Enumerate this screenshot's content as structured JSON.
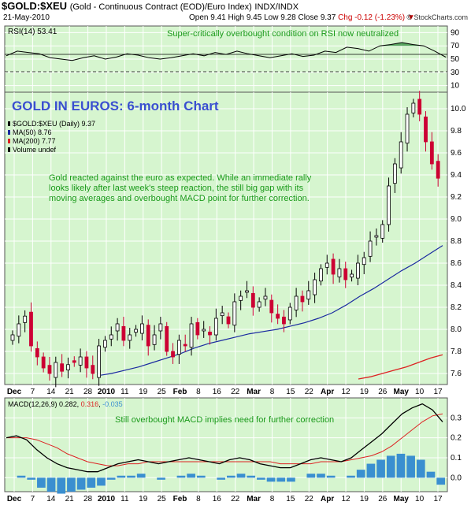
{
  "header": {
    "symbol": "$GOLD:$XEU",
    "description": "(Gold - Continuous Contract (EOD)/Euro Index)",
    "exchange": "INDX/INDX",
    "date": "21-May-2010",
    "open": "Open 9.41",
    "high": "High 9.45",
    "low": "Low 9.28",
    "close": "Close 9.37",
    "change": "Chg -0.12 (-1.23%)",
    "arrow": "▼",
    "brand": "© StockCharts.com"
  },
  "colors": {
    "panel_bg": "#d6f5cf",
    "up_candle": "#000000",
    "down_candle": "#cc0033",
    "ma50": "#1a2aa0",
    "ma200": "#dd2222",
    "macd": "#000000",
    "signal": "#dd2222",
    "histogram": "#3a8fd0",
    "annotation": "#1a9a1a",
    "title": "#3a4fd0"
  },
  "rsi_panel": {
    "label": "RSI(14) 53.41",
    "annotation": "Super-critically overbought condition on RSI now neutralized",
    "ticks": [
      "90",
      "70",
      "50",
      "30",
      "10"
    ]
  },
  "main_panel": {
    "title": "GOLD IN EUROS: 6-month Chart",
    "legend": [
      "$GOLD:$XEU (Daily) 9.37",
      "MA(50) 8.76",
      "MA(200) 7.77",
      "Volume undef"
    ],
    "annotation_lines": [
      "Gold reacted against the euro as expected. While an immediate rally",
      "looks likely after last week's steep reaction, the still big gap with its",
      "moving averages and overbought MACD point for further correction."
    ],
    "y_ticks": [
      "10.0",
      "9.8",
      "9.6",
      "9.4",
      "9.2",
      "9.0",
      "8.8",
      "8.6",
      "8.4",
      "8.2",
      "8.0",
      "7.8",
      "7.6"
    ]
  },
  "macd_panel": {
    "label_prefix": "MACD(12,26,9)",
    "macd_value": "0.282",
    "signal_value": "0.316",
    "hist_value": "-0.035",
    "annotation": "Still overbought MACD implies need for further correction",
    "ticks": [
      "0.3",
      "0.2",
      "0.1",
      "0.0"
    ]
  },
  "x_axis": {
    "labels": [
      {
        "t": "Dec",
        "b": true
      },
      {
        "t": "7",
        "b": false
      },
      {
        "t": "14",
        "b": false
      },
      {
        "t": "21",
        "b": false
      },
      {
        "t": "28",
        "b": false
      },
      {
        "t": "2010",
        "b": true
      },
      {
        "t": "11",
        "b": false
      },
      {
        "t": "19",
        "b": false
      },
      {
        "t": "25",
        "b": false
      },
      {
        "t": "Feb",
        "b": true
      },
      {
        "t": "8",
        "b": false
      },
      {
        "t": "16",
        "b": false
      },
      {
        "t": "22",
        "b": false
      },
      {
        "t": "Mar",
        "b": true
      },
      {
        "t": "8",
        "b": false
      },
      {
        "t": "15",
        "b": false
      },
      {
        "t": "22",
        "b": false
      },
      {
        "t": "Apr",
        "b": true
      },
      {
        "t": "12",
        "b": false
      },
      {
        "t": "19",
        "b": false
      },
      {
        "t": "26",
        "b": false
      },
      {
        "t": "May",
        "b": true
      },
      {
        "t": "10",
        "b": false
      },
      {
        "t": "17",
        "b": false
      }
    ]
  },
  "chart_data": {
    "type": "candlestick",
    "title": "GOLD IN EUROS: 6-month Chart",
    "x_range": [
      "2009-11-27",
      "2010-05-21"
    ],
    "price_ylim": [
      7.5,
      10.15
    ],
    "rsi_ylim": [
      0,
      100
    ],
    "macd_ylim": [
      -0.07,
      0.4
    ],
    "price_close_approx": [
      7.95,
      8.05,
      8.12,
      7.85,
      7.75,
      7.65,
      7.6,
      7.7,
      7.62,
      7.68,
      7.7,
      7.75,
      7.65,
      7.6,
      7.85,
      7.9,
      7.95,
      8.05,
      7.9,
      7.95,
      8.0,
      8.05,
      7.85,
      7.95,
      8.05,
      7.8,
      7.75,
      7.9,
      7.85,
      8.05,
      7.95,
      8.0,
      7.95,
      8.1,
      8.15,
      8.05,
      8.25,
      8.3,
      8.35,
      8.2,
      8.25,
      8.3,
      8.15,
      8.1,
      8.05,
      8.2,
      8.3,
      8.25,
      8.35,
      8.45,
      8.55,
      8.6,
      8.5,
      8.55,
      8.45,
      8.5,
      8.6,
      8.65,
      8.8,
      8.85,
      8.95,
      9.3,
      9.5,
      9.7,
      9.95,
      10.05,
      9.95,
      9.7,
      9.5,
      9.37
    ],
    "ma50_approx": [
      7.58,
      7.6,
      7.63,
      7.66,
      7.7,
      7.74,
      7.78,
      7.83,
      7.87,
      7.9,
      7.93,
      7.96,
      7.98,
      8.0,
      8.03,
      8.06,
      8.1,
      8.15,
      8.22,
      8.3,
      8.37,
      8.45,
      8.53,
      8.6,
      8.68,
      8.76
    ],
    "ma200_approx": [
      7.55,
      7.57,
      7.6,
      7.63,
      7.66,
      7.7,
      7.74,
      7.77
    ],
    "rsi_approx": [
      55,
      62,
      60,
      58,
      52,
      50,
      48,
      52,
      55,
      50,
      53,
      58,
      56,
      52,
      50,
      52,
      55,
      58,
      55,
      60,
      57,
      62,
      58,
      55,
      52,
      55,
      58,
      54,
      56,
      62,
      60,
      68,
      66,
      62,
      70,
      72,
      75,
      72,
      70,
      62,
      53
    ],
    "macd_approx": [
      0.2,
      0.21,
      0.19,
      0.14,
      0.1,
      0.07,
      0.05,
      0.04,
      0.03,
      0.03,
      0.05,
      0.07,
      0.08,
      0.09,
      0.08,
      0.07,
      0.08,
      0.09,
      0.1,
      0.09,
      0.08,
      0.07,
      0.09,
      0.1,
      0.09,
      0.07,
      0.06,
      0.05,
      0.05,
      0.07,
      0.09,
      0.1,
      0.09,
      0.08,
      0.1,
      0.14,
      0.18,
      0.22,
      0.27,
      0.32,
      0.35,
      0.37,
      0.34,
      0.28
    ],
    "signal_approx": [
      0.2,
      0.2,
      0.2,
      0.19,
      0.17,
      0.15,
      0.12,
      0.1,
      0.08,
      0.07,
      0.06,
      0.06,
      0.07,
      0.07,
      0.08,
      0.08,
      0.08,
      0.08,
      0.08,
      0.08,
      0.08,
      0.08,
      0.08,
      0.08,
      0.08,
      0.08,
      0.08,
      0.07,
      0.07,
      0.07,
      0.07,
      0.08,
      0.08,
      0.08,
      0.09,
      0.1,
      0.11,
      0.13,
      0.16,
      0.2,
      0.24,
      0.28,
      0.31,
      0.32
    ],
    "hist_approx": [
      0.0,
      0.01,
      -0.01,
      -0.05,
      -0.07,
      -0.08,
      -0.07,
      -0.06,
      -0.05,
      -0.04,
      -0.01,
      0.01,
      0.01,
      0.02,
      0.0,
      -0.01,
      0.0,
      0.01,
      0.02,
      0.01,
      0.0,
      -0.01,
      0.01,
      0.02,
      0.01,
      -0.01,
      -0.02,
      -0.02,
      -0.02,
      0.0,
      0.02,
      0.02,
      0.01,
      0.0,
      0.01,
      0.04,
      0.07,
      0.09,
      0.11,
      0.12,
      0.11,
      0.09,
      0.03,
      -0.035
    ]
  }
}
